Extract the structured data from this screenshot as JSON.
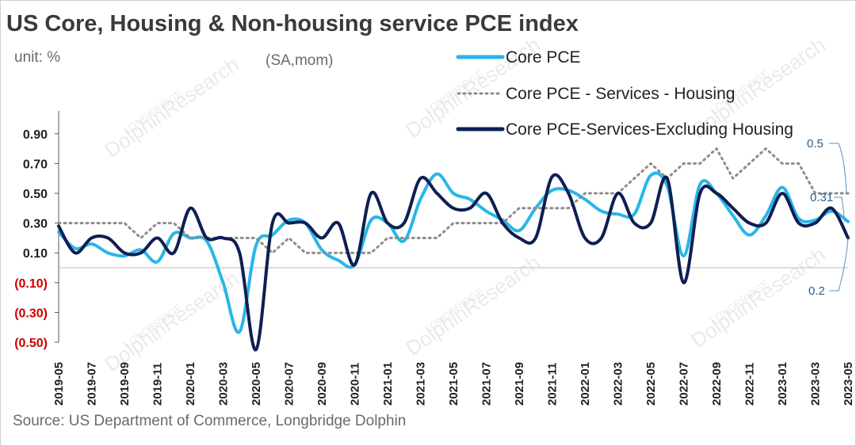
{
  "header": {
    "title": "US Core, Housing & Non-housing service PCE index",
    "unit": "unit:  %",
    "subtitle": "(SA,mom)"
  },
  "footer": {
    "source": "Source: US Department of Commerce, Longbridge Dolphin"
  },
  "watermark": {
    "text": "DolphinResearch",
    "brand": "LONGBRIDGE"
  },
  "colors": {
    "core": "#29b6e8",
    "housing": "#8c8c8c",
    "ex_housing": "#0d1f52",
    "negative_tick": "#cc0000",
    "positive_tick": "#222222"
  },
  "chart_data": {
    "type": "line",
    "title": "US Core, Housing & Non-housing service PCE index",
    "ylim": [
      -0.5,
      1.0
    ],
    "yticks": [
      0.9,
      0.7,
      0.5,
      0.3,
      0.1,
      -0.1,
      -0.3,
      -0.5
    ],
    "ytick_labels": [
      "0.90",
      "0.70",
      "0.50",
      "0.30",
      "0.10",
      "(0.10)",
      "(0.30)",
      "(0.50)"
    ],
    "x": [
      "2019-05",
      "2019-06",
      "2019-07",
      "2019-08",
      "2019-09",
      "2019-10",
      "2019-11",
      "2019-12",
      "2020-01",
      "2020-02",
      "2020-03",
      "2020-04",
      "2020-05",
      "2020-06",
      "2020-07",
      "2020-08",
      "2020-09",
      "2020-10",
      "2020-11",
      "2020-12",
      "2021-01",
      "2021-02",
      "2021-03",
      "2021-04",
      "2021-05",
      "2021-06",
      "2021-07",
      "2021-08",
      "2021-09",
      "2021-10",
      "2021-11",
      "2021-12",
      "2022-01",
      "2022-02",
      "2022-03",
      "2022-04",
      "2022-05",
      "2022-06",
      "2022-07",
      "2022-08",
      "2022-09",
      "2022-10",
      "2022-11",
      "2022-12",
      "2023-01",
      "2023-02",
      "2023-03",
      "2023-04",
      "2023-05"
    ],
    "xtick_labels": [
      "2019-05",
      "2019-07",
      "2019-09",
      "2019-11",
      "2020-01",
      "2020-03",
      "2020-05",
      "2020-07",
      "2020-09",
      "2020-11",
      "2021-01",
      "2021-03",
      "2021-05",
      "2021-07",
      "2021-09",
      "2021-11",
      "2022-01",
      "2022-03",
      "2022-05",
      "2022-07",
      "2022-09",
      "2022-11",
      "2023-01",
      "2023-03",
      "2023-05"
    ],
    "legend_position": "top-right",
    "series": [
      {
        "name": "Core PCE",
        "style": "solid",
        "values": [
          0.24,
          0.13,
          0.16,
          0.1,
          0.08,
          0.12,
          0.04,
          0.23,
          0.2,
          0.18,
          -0.1,
          -0.43,
          0.15,
          0.22,
          0.32,
          0.3,
          0.12,
          0.05,
          0.02,
          0.32,
          0.3,
          0.18,
          0.46,
          0.63,
          0.5,
          0.46,
          0.38,
          0.32,
          0.25,
          0.4,
          0.52,
          0.52,
          0.46,
          0.38,
          0.36,
          0.36,
          0.62,
          0.55,
          0.08,
          0.56,
          0.5,
          0.35,
          0.22,
          0.35,
          0.54,
          0.33,
          0.32,
          0.38,
          0.31
        ]
      },
      {
        "name": "Core PCE - Services - Housing",
        "style": "dotted",
        "values": [
          0.3,
          0.3,
          0.3,
          0.3,
          0.3,
          0.2,
          0.3,
          0.3,
          0.2,
          0.2,
          0.2,
          0.2,
          0.2,
          0.1,
          0.2,
          0.1,
          0.1,
          0.1,
          0.1,
          0.1,
          0.2,
          0.2,
          0.2,
          0.2,
          0.3,
          0.3,
          0.3,
          0.3,
          0.4,
          0.4,
          0.4,
          0.4,
          0.5,
          0.5,
          0.5,
          0.6,
          0.7,
          0.6,
          0.7,
          0.7,
          0.8,
          0.6,
          0.7,
          0.8,
          0.7,
          0.7,
          0.5,
          0.5,
          0.5
        ]
      },
      {
        "name": "Core PCE-Services-Excluding Housing",
        "style": "solid",
        "values": [
          0.28,
          0.1,
          0.2,
          0.2,
          0.1,
          0.1,
          0.2,
          0.1,
          0.4,
          0.2,
          0.2,
          0.1,
          -0.55,
          0.3,
          0.3,
          0.3,
          0.2,
          0.3,
          0.02,
          0.5,
          0.3,
          0.3,
          0.6,
          0.5,
          0.4,
          0.4,
          0.5,
          0.3,
          0.2,
          0.2,
          0.61,
          0.5,
          0.2,
          0.2,
          0.5,
          0.3,
          0.3,
          0.6,
          -0.1,
          0.5,
          0.5,
          0.4,
          0.3,
          0.3,
          0.5,
          0.3,
          0.3,
          0.4,
          0.2
        ]
      }
    ],
    "annotations": [
      {
        "text": "0.5"
      },
      {
        "text": "0.31"
      },
      {
        "text": "0.2"
      }
    ]
  }
}
